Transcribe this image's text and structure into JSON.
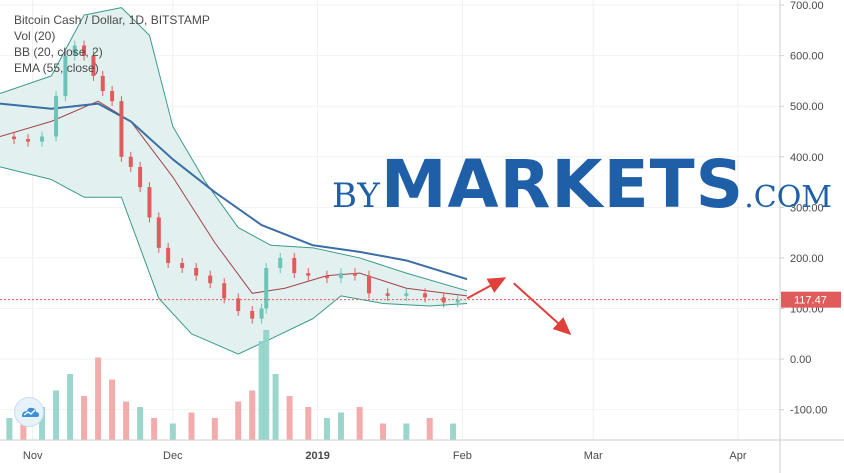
{
  "legend": {
    "line1": "Bitcoin Cash / Dollar, 1D, BITSTAMP",
    "line2": "Vol (20)",
    "line3": "BB (20, close, 2)",
    "line4": "EMA (55, close)"
  },
  "watermark": {
    "by": "BY",
    "markets": "MARKETS",
    "com": ".COM"
  },
  "price_label": "117.47",
  "colors": {
    "up": "#6cc4b8",
    "down": "#e05b5b",
    "vol_up": "#8fd1c6",
    "vol_down": "#f2a3a3",
    "ema": "#3a6ea5",
    "bb_band": "#3a9a8c",
    "bb_mid": "#a4424b",
    "bb_fill": "#e2f1ef",
    "price_line": "#e05b5b",
    "arrow": "#e0403a",
    "axis_text": "#4a4a4a"
  },
  "chart_data": {
    "type": "candlestick",
    "title": "Bitcoin Cash / Dollar, 1D, BITSTAMP",
    "y_axis": {
      "ticks": [
        700,
        600,
        500,
        400,
        300,
        200,
        100,
        0,
        -100
      ],
      "tick_labels": [
        "700.00",
        "600.00",
        "500.00",
        "400.00",
        "300.00",
        "200.00",
        "100.00",
        "0.00",
        "-100.00"
      ],
      "range": [
        -160,
        710
      ]
    },
    "x_axis": {
      "tick_labels": [
        "Nov",
        "Dec",
        "2019",
        "Feb",
        "Mar",
        "Apr"
      ],
      "tick_dates": [
        "2018-11-01",
        "2018-12-01",
        "2019-01-01",
        "2019-02-01",
        "2019-03-01",
        "2019-04-01"
      ],
      "range": [
        "2018-10-25",
        "2019-04-10"
      ]
    },
    "last_price": 117.47,
    "price_series": [
      {
        "date": "2018-10-25",
        "close": 440
      },
      {
        "date": "2018-10-28",
        "close": 435
      },
      {
        "date": "2018-10-31",
        "close": 430
      },
      {
        "date": "2018-11-03",
        "close": 440
      },
      {
        "date": "2018-11-06",
        "close": 520
      },
      {
        "date": "2018-11-08",
        "close": 600
      },
      {
        "date": "2018-11-10",
        "close": 620
      },
      {
        "date": "2018-11-12",
        "close": 600
      },
      {
        "date": "2018-11-14",
        "close": 560
      },
      {
        "date": "2018-11-16",
        "close": 530
      },
      {
        "date": "2018-11-18",
        "close": 510
      },
      {
        "date": "2018-11-20",
        "close": 400
      },
      {
        "date": "2018-11-22",
        "close": 380
      },
      {
        "date": "2018-11-24",
        "close": 340
      },
      {
        "date": "2018-11-26",
        "close": 280
      },
      {
        "date": "2018-11-28",
        "close": 220
      },
      {
        "date": "2018-11-30",
        "close": 190
      },
      {
        "date": "2018-12-03",
        "close": 180
      },
      {
        "date": "2018-12-06",
        "close": 165
      },
      {
        "date": "2018-12-09",
        "close": 150
      },
      {
        "date": "2018-12-12",
        "close": 120
      },
      {
        "date": "2018-12-15",
        "close": 95
      },
      {
        "date": "2018-12-18",
        "close": 80
      },
      {
        "date": "2018-12-20",
        "close": 100
      },
      {
        "date": "2018-12-21",
        "close": 180
      },
      {
        "date": "2018-12-24",
        "close": 200
      },
      {
        "date": "2018-12-27",
        "close": 170
      },
      {
        "date": "2018-12-30",
        "close": 165
      },
      {
        "date": "2019-01-03",
        "close": 160
      },
      {
        "date": "2019-01-06",
        "close": 170
      },
      {
        "date": "2019-01-09",
        "close": 165
      },
      {
        "date": "2019-01-12",
        "close": 130
      },
      {
        "date": "2019-01-16",
        "close": 125
      },
      {
        "date": "2019-01-20",
        "close": 130
      },
      {
        "date": "2019-01-24",
        "close": 122
      },
      {
        "date": "2019-01-28",
        "close": 112
      },
      {
        "date": "2019-01-31",
        "close": 117
      }
    ],
    "ema_55": [
      {
        "date": "2018-10-25",
        "value": 505
      },
      {
        "date": "2018-11-05",
        "value": 495
      },
      {
        "date": "2018-11-15",
        "value": 505
      },
      {
        "date": "2018-11-22",
        "value": 470
      },
      {
        "date": "2018-12-01",
        "value": 395
      },
      {
        "date": "2018-12-10",
        "value": 330
      },
      {
        "date": "2018-12-20",
        "value": 265
      },
      {
        "date": "2018-12-31",
        "value": 225
      },
      {
        "date": "2019-01-10",
        "value": 212
      },
      {
        "date": "2019-01-20",
        "value": 195
      },
      {
        "date": "2019-02-02",
        "value": 158
      }
    ],
    "bb_upper": [
      {
        "date": "2018-10-25",
        "value": 525
      },
      {
        "date": "2018-11-05",
        "value": 560
      },
      {
        "date": "2018-11-12",
        "value": 680
      },
      {
        "date": "2018-11-20",
        "value": 695
      },
      {
        "date": "2018-11-26",
        "value": 640
      },
      {
        "date": "2018-12-01",
        "value": 460
      },
      {
        "date": "2018-12-08",
        "value": 350
      },
      {
        "date": "2018-12-15",
        "value": 260
      },
      {
        "date": "2018-12-22",
        "value": 225
      },
      {
        "date": "2018-12-31",
        "value": 220
      },
      {
        "date": "2019-01-10",
        "value": 200
      },
      {
        "date": "2019-01-20",
        "value": 170
      },
      {
        "date": "2019-02-02",
        "value": 135
      }
    ],
    "bb_middle": [
      {
        "date": "2018-10-25",
        "value": 440
      },
      {
        "date": "2018-11-05",
        "value": 470
      },
      {
        "date": "2018-11-15",
        "value": 510
      },
      {
        "date": "2018-11-22",
        "value": 470
      },
      {
        "date": "2018-12-01",
        "value": 360
      },
      {
        "date": "2018-12-10",
        "value": 230
      },
      {
        "date": "2018-12-18",
        "value": 130
      },
      {
        "date": "2018-12-25",
        "value": 140
      },
      {
        "date": "2019-01-03",
        "value": 165
      },
      {
        "date": "2019-01-10",
        "value": 170
      },
      {
        "date": "2019-01-20",
        "value": 140
      },
      {
        "date": "2019-02-02",
        "value": 125
      }
    ],
    "bb_lower": [
      {
        "date": "2018-10-25",
        "value": 380
      },
      {
        "date": "2018-11-05",
        "value": 355
      },
      {
        "date": "2018-11-12",
        "value": 320
      },
      {
        "date": "2018-11-20",
        "value": 320
      },
      {
        "date": "2018-11-28",
        "value": 120
      },
      {
        "date": "2018-12-05",
        "value": 50
      },
      {
        "date": "2018-12-15",
        "value": 10
      },
      {
        "date": "2018-12-22",
        "value": 40
      },
      {
        "date": "2018-12-31",
        "value": 80
      },
      {
        "date": "2019-01-06",
        "value": 125
      },
      {
        "date": "2019-01-15",
        "value": 110
      },
      {
        "date": "2019-01-25",
        "value": 105
      },
      {
        "date": "2019-02-02",
        "value": 110
      }
    ],
    "volume": [
      {
        "date": "2018-10-27",
        "v": 0.2,
        "up": true
      },
      {
        "date": "2018-10-30",
        "v": 0.25,
        "up": false
      },
      {
        "date": "2018-11-03",
        "v": 0.3,
        "up": true
      },
      {
        "date": "2018-11-06",
        "v": 0.45,
        "up": true
      },
      {
        "date": "2018-11-09",
        "v": 0.6,
        "up": true
      },
      {
        "date": "2018-11-12",
        "v": 0.4,
        "up": false
      },
      {
        "date": "2018-11-15",
        "v": 0.75,
        "up": false
      },
      {
        "date": "2018-11-18",
        "v": 0.55,
        "up": false
      },
      {
        "date": "2018-11-21",
        "v": 0.35,
        "up": false
      },
      {
        "date": "2018-11-24",
        "v": 0.3,
        "up": true
      },
      {
        "date": "2018-11-27",
        "v": 0.2,
        "up": false
      },
      {
        "date": "2018-12-01",
        "v": 0.15,
        "up": true
      },
      {
        "date": "2018-12-05",
        "v": 0.25,
        "up": false
      },
      {
        "date": "2018-12-10",
        "v": 0.2,
        "up": false
      },
      {
        "date": "2018-12-15",
        "v": 0.35,
        "up": false
      },
      {
        "date": "2018-12-18",
        "v": 0.45,
        "up": false
      },
      {
        "date": "2018-12-20",
        "v": 0.9,
        "up": true
      },
      {
        "date": "2018-12-21",
        "v": 1.0,
        "up": true
      },
      {
        "date": "2018-12-23",
        "v": 0.6,
        "up": true
      },
      {
        "date": "2018-12-26",
        "v": 0.4,
        "up": false
      },
      {
        "date": "2018-12-30",
        "v": 0.3,
        "up": false
      },
      {
        "date": "2019-01-03",
        "v": 0.2,
        "up": true
      },
      {
        "date": "2019-01-06",
        "v": 0.25,
        "up": true
      },
      {
        "date": "2019-01-10",
        "v": 0.3,
        "up": false
      },
      {
        "date": "2019-01-15",
        "v": 0.15,
        "up": false
      },
      {
        "date": "2019-01-20",
        "v": 0.15,
        "up": true
      },
      {
        "date": "2019-01-25",
        "v": 0.2,
        "up": false
      },
      {
        "date": "2019-01-30",
        "v": 0.15,
        "up": true
      }
    ],
    "annotation_arrows": [
      {
        "from": {
          "date": "2019-02-02",
          "value": 120
        },
        "to": {
          "date": "2019-02-10",
          "value": 160
        }
      },
      {
        "from": {
          "date": "2019-02-12",
          "value": 150
        },
        "to": {
          "date": "2019-02-24",
          "value": 50
        }
      }
    ]
  }
}
